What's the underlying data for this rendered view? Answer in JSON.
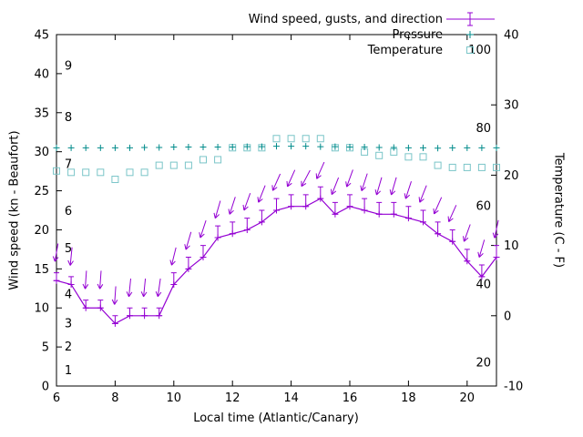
{
  "legend": {
    "entries": [
      {
        "label": "Wind speed, gusts, and direction",
        "marker": "errorbar-line",
        "color": "#9400d3"
      },
      {
        "label": "Pressure",
        "marker": "plus",
        "color": "#008b8b"
      },
      {
        "label": "Temperature",
        "marker": "open-square",
        "color": "#7ac5c8"
      }
    ]
  },
  "axes": {
    "x": {
      "label": "Local time (Atlantic/Canary)",
      "min": 6,
      "max": 21,
      "ticks": [
        6,
        8,
        10,
        12,
        14,
        16,
        18,
        20
      ]
    },
    "y_left": {
      "label": "Wind speed (kn - Beaufort)",
      "min": 0,
      "max": 45,
      "ticks": [
        0,
        5,
        10,
        15,
        20,
        25,
        30,
        35,
        40,
        45
      ]
    },
    "y_right": {
      "label": "Temperature (C - F)",
      "min": -10,
      "max": 40,
      "ticks": [
        -10,
        0,
        10,
        20,
        30,
        40
      ]
    },
    "beaufort_scale": {
      "labels": [
        "1",
        "2",
        "3",
        "4",
        "5",
        "6",
        "7",
        "8",
        "9"
      ],
      "kn_positions": [
        2,
        5,
        8,
        11.7,
        17.6,
        22.4,
        28.4,
        34.4,
        41
      ]
    },
    "fahrenheit_scale": {
      "labels": [
        "20",
        "40",
        "60",
        "80",
        "100"
      ],
      "f_values": [
        20,
        40,
        60,
        80,
        100
      ]
    }
  },
  "colors": {
    "wind": "#9400d3",
    "pressure": "#008b8b",
    "temperature": "#7ac5c8",
    "axis": "#000000"
  },
  "chart_data": {
    "type": "line",
    "xlabel": "Local time (Atlantic/Canary)",
    "ylabel_left": "Wind speed (kn - Beaufort)",
    "ylabel_right": "Temperature (C - F)",
    "x_range": [
      6,
      21
    ],
    "y_left_range": [
      0,
      45
    ],
    "y_right_range": [
      -10,
      40
    ],
    "grid": false,
    "legend_position": "top-right",
    "x_hours": [
      6,
      6.5,
      7,
      7.5,
      8,
      8.5,
      9,
      9.5,
      10,
      10.5,
      11,
      11.5,
      12,
      12.5,
      13,
      13.5,
      14,
      14.5,
      15,
      15.5,
      16,
      16.5,
      17,
      17.5,
      18,
      18.5,
      19,
      19.5,
      20,
      20.5,
      21
    ],
    "series": [
      {
        "name": "Wind speed (kn)",
        "axis": "left",
        "style": "line-with-plus-and-errorbars",
        "values": [
          13.5,
          13,
          10,
          10,
          8,
          9,
          9,
          9,
          13,
          15,
          16.5,
          19,
          19.5,
          20,
          21,
          22.5,
          23,
          23,
          24,
          22,
          23,
          22.5,
          22,
          22,
          21.5,
          21,
          19.5,
          18.5,
          16,
          14,
          16.5
        ]
      },
      {
        "name": "Gusts (kn)",
        "axis": "left",
        "style": "errorbar-top",
        "values": [
          14.5,
          14,
          11,
          11,
          9,
          10,
          10,
          10,
          14.5,
          16.5,
          18,
          20.5,
          21,
          21.5,
          22.5,
          24,
          24.5,
          24.5,
          25.5,
          23.5,
          24.5,
          24,
          23.5,
          23.5,
          23,
          22.5,
          21,
          20,
          17.5,
          15.5,
          18
        ]
      },
      {
        "name": "Wind direction arrows",
        "axis": "left",
        "style": "arrows",
        "tilt_deg_from_down": [
          -10,
          -6,
          -4,
          -4,
          -4,
          -6,
          -6,
          -8,
          -14,
          -16,
          -18,
          -16,
          -18,
          -20,
          -22,
          -24,
          -24,
          -28,
          -24,
          -22,
          -20,
          -18,
          -16,
          -16,
          -18,
          -22,
          -24,
          -24,
          -20,
          -16,
          -12
        ]
      },
      {
        "name": "Pressure (inHg)",
        "axis": "left",
        "style": "plus-points",
        "values": [
          30.5,
          30.5,
          30.5,
          30.5,
          30.5,
          30.5,
          30.55,
          30.55,
          30.6,
          30.6,
          30.6,
          30.6,
          30.6,
          30.65,
          30.65,
          30.7,
          30.7,
          30.7,
          30.65,
          30.65,
          30.6,
          30.6,
          30.55,
          30.55,
          30.5,
          30.5,
          30.45,
          30.5,
          30.5,
          30.5,
          30.5
        ]
      },
      {
        "name": "Temperature (C)",
        "axis": "right",
        "style": "square-points",
        "values": [
          20.6,
          20.4,
          20.4,
          20.4,
          19.4,
          20.4,
          20.4,
          21.4,
          21.4,
          21.4,
          22.2,
          22.2,
          23.9,
          23.9,
          23.9,
          25.2,
          25.2,
          25.2,
          25.2,
          23.9,
          23.9,
          23.3,
          22.8,
          23.3,
          22.6,
          22.6,
          21.4,
          21.1,
          21.1,
          21.1,
          21.1
        ]
      }
    ]
  }
}
